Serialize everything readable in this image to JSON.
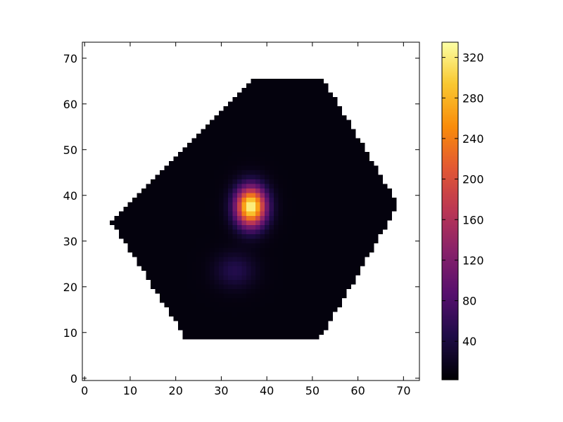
{
  "chart_data": {
    "type": "heatmap",
    "title": "",
    "xlabel": "",
    "ylabel": "",
    "xlim": [
      -0.5,
      73.5
    ],
    "ylim": [
      -0.5,
      73.5
    ],
    "grid": false,
    "x_ticks": [
      "0",
      "10",
      "20",
      "30",
      "40",
      "50",
      "60",
      "70"
    ],
    "y_ticks": [
      "0",
      "10",
      "20",
      "30",
      "40",
      "50",
      "60",
      "70"
    ],
    "colormap": "inferno",
    "background_color": "#ffffff",
    "nodata_outside_hexagon": true,
    "footprint": {
      "shape": "hexagon",
      "vertices": [
        [
          6,
          34
        ],
        [
          22,
          9
        ],
        [
          52,
          9
        ],
        [
          69,
          38
        ],
        [
          52,
          66
        ],
        [
          38,
          66
        ]
      ]
    },
    "sources": [
      {
        "x": 36.5,
        "y": 37.5,
        "peak": 325,
        "sigma_x": 2.3,
        "sigma_y": 3.0
      },
      {
        "x": 33,
        "y": 23.5,
        "peak": 40,
        "sigma_x": 3.0,
        "sigma_y": 2.6
      }
    ],
    "background_level": 8,
    "colorbar": {
      "min": 2,
      "max": 335,
      "ticks": [
        40,
        80,
        120,
        160,
        200,
        240,
        280,
        320
      ],
      "tick_labels": [
        "40",
        "80",
        "120",
        "160",
        "200",
        "240",
        "280",
        "320"
      ]
    }
  }
}
